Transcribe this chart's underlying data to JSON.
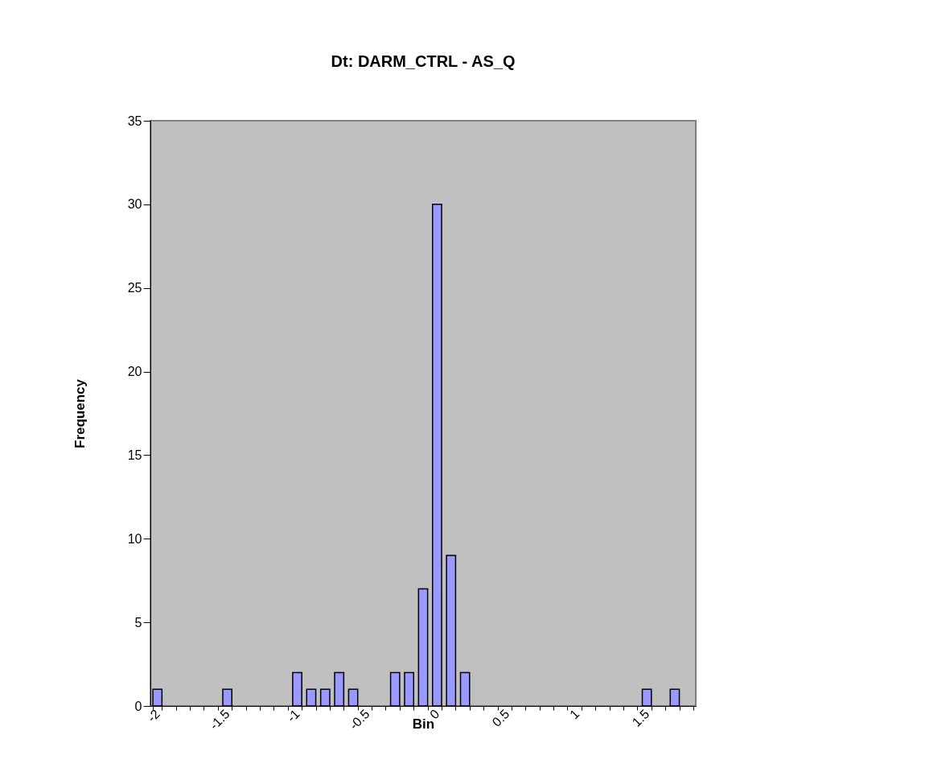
{
  "chart_data": {
    "type": "bar",
    "title": "Dt: DARM_CTRL - AS_Q",
    "xlabel": "Bin",
    "ylabel": "Frequency",
    "categories": [
      "-2",
      null,
      null,
      null,
      null,
      "-1.5",
      null,
      null,
      null,
      null,
      "-1",
      null,
      null,
      null,
      null,
      "-0.5",
      null,
      null,
      null,
      null,
      "0",
      null,
      null,
      null,
      null,
      "0.5",
      null,
      null,
      null,
      null,
      "1",
      null,
      null,
      null,
      null,
      "1.5",
      null,
      null,
      null
    ],
    "values": [
      1,
      0,
      0,
      0,
      0,
      1,
      0,
      0,
      0,
      0,
      2,
      1,
      1,
      2,
      1,
      0,
      0,
      2,
      2,
      7,
      30,
      9,
      2,
      0,
      0,
      0,
      0,
      0,
      0,
      0,
      0,
      0,
      0,
      0,
      0,
      1,
      0,
      1,
      0
    ],
    "color": "#9999ff",
    "ylim": [
      0,
      35
    ],
    "yticks": [
      0,
      5,
      10,
      15,
      20,
      25,
      30,
      35
    ]
  }
}
